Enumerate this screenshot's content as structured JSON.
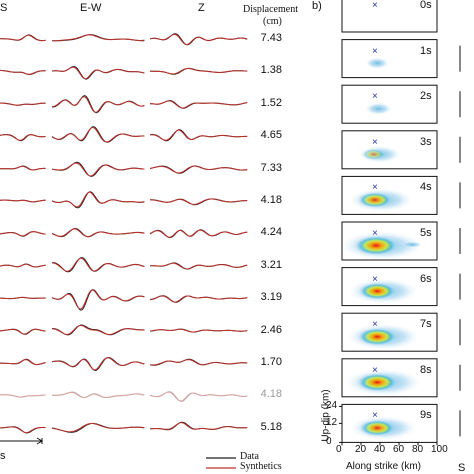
{
  "waveforms": {
    "component_headers": [
      "S",
      "E-W",
      "Z"
    ],
    "displacement_header_line1": "Displacement",
    "displacement_header_line2": "(cm)",
    "displacement_values": [
      "7.43",
      "1.38",
      "1.52",
      "4.65",
      "7.33",
      "4.18",
      "4.24",
      "3.21",
      "3.19",
      "2.46",
      "1.70",
      "4.18",
      "5.18"
    ],
    "muted_row_index": 11,
    "time_scale_label": "s",
    "legend": [
      {
        "label": "Data",
        "color": "#222222"
      },
      {
        "label": "Synthetics",
        "color": "#c0312b"
      }
    ]
  },
  "snapshots": {
    "panel_label": "b)",
    "time_labels": [
      "0s",
      "1s",
      "2s",
      "3s",
      "4s",
      "5s",
      "6s",
      "7s",
      "8s",
      "9s"
    ],
    "slip_peak_level": [
      0.0,
      0.05,
      0.1,
      0.35,
      0.7,
      1.0,
      0.8,
      0.85,
      0.9,
      0.75
    ],
    "y_axis_title": "Up-dip (km)",
    "y_ticks": [
      "24",
      "12",
      "0"
    ],
    "x_axis_title": "Along strike (km)",
    "x_ticks": [
      "0",
      "20",
      "40",
      "60",
      "80",
      "100"
    ],
    "hypocenter_marker": "×",
    "next_column_partial_label": "S"
  }
}
